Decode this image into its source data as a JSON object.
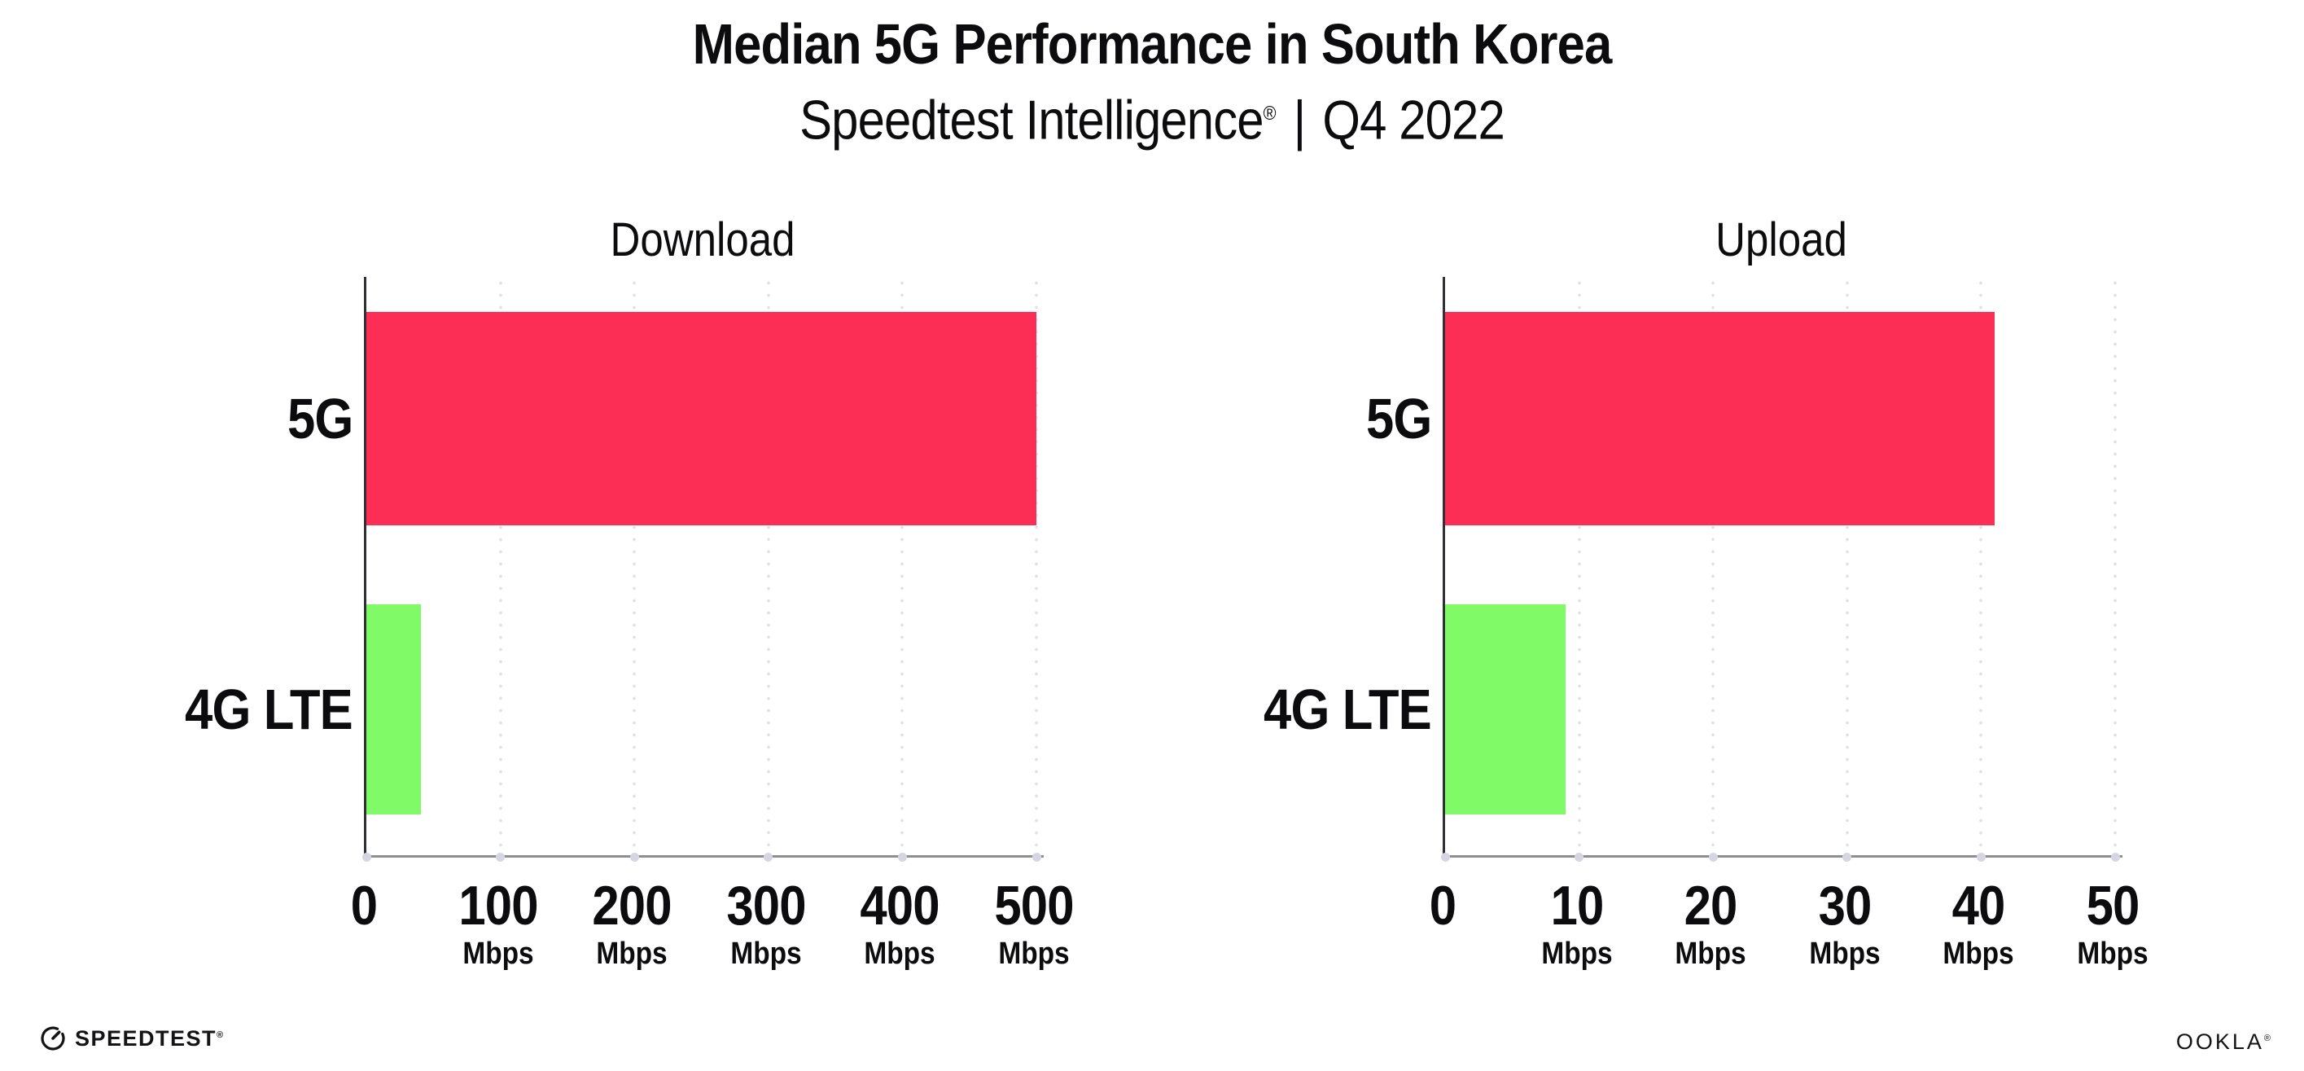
{
  "header": {
    "title": "Median 5G Performance in South Korea",
    "subtitle_brand": "Speedtest Intelligence",
    "subtitle_reg_mark": "®",
    "subtitle_separator": "|",
    "subtitle_period": "Q4 2022"
  },
  "chart_data": [
    {
      "type": "bar",
      "orientation": "horizontal",
      "title": "Download",
      "categories": [
        "5G",
        "4G LTE"
      ],
      "values": [
        500,
        41
      ],
      "value_unit": "Mbps",
      "xlim": [
        0,
        500
      ],
      "xticks": [
        0,
        100,
        200,
        300,
        400,
        500
      ],
      "tick_unit": "Mbps",
      "bar_colors": [
        "#fc2e55",
        "#80fa66"
      ],
      "grid": "dotted-vertical-gridlines",
      "legend": "none"
    },
    {
      "type": "bar",
      "orientation": "horizontal",
      "title": "Upload",
      "categories": [
        "5G",
        "4G LTE"
      ],
      "values": [
        41,
        9
      ],
      "value_unit": "Mbps",
      "xlim": [
        0,
        50
      ],
      "xticks": [
        0,
        10,
        20,
        30,
        40,
        50
      ],
      "tick_unit": "Mbps",
      "bar_colors": [
        "#fc2e55",
        "#80fa66"
      ],
      "grid": "dotted-vertical-gridlines",
      "legend": "none"
    }
  ],
  "footer": {
    "speedtest_label": "SPEEDTEST",
    "speedtest_reg_mark": "®",
    "ookla_label": "OOKLA",
    "ookla_reg_mark": "®"
  },
  "colors": {
    "bar_5g": "#fc2e55",
    "bar_4g_lte": "#80fa66",
    "gridline": "#e2e2ec",
    "y_axis": "#303038",
    "x_axis": "#8e8e96",
    "text": "#0c0c0e",
    "background": "#ffffff"
  }
}
